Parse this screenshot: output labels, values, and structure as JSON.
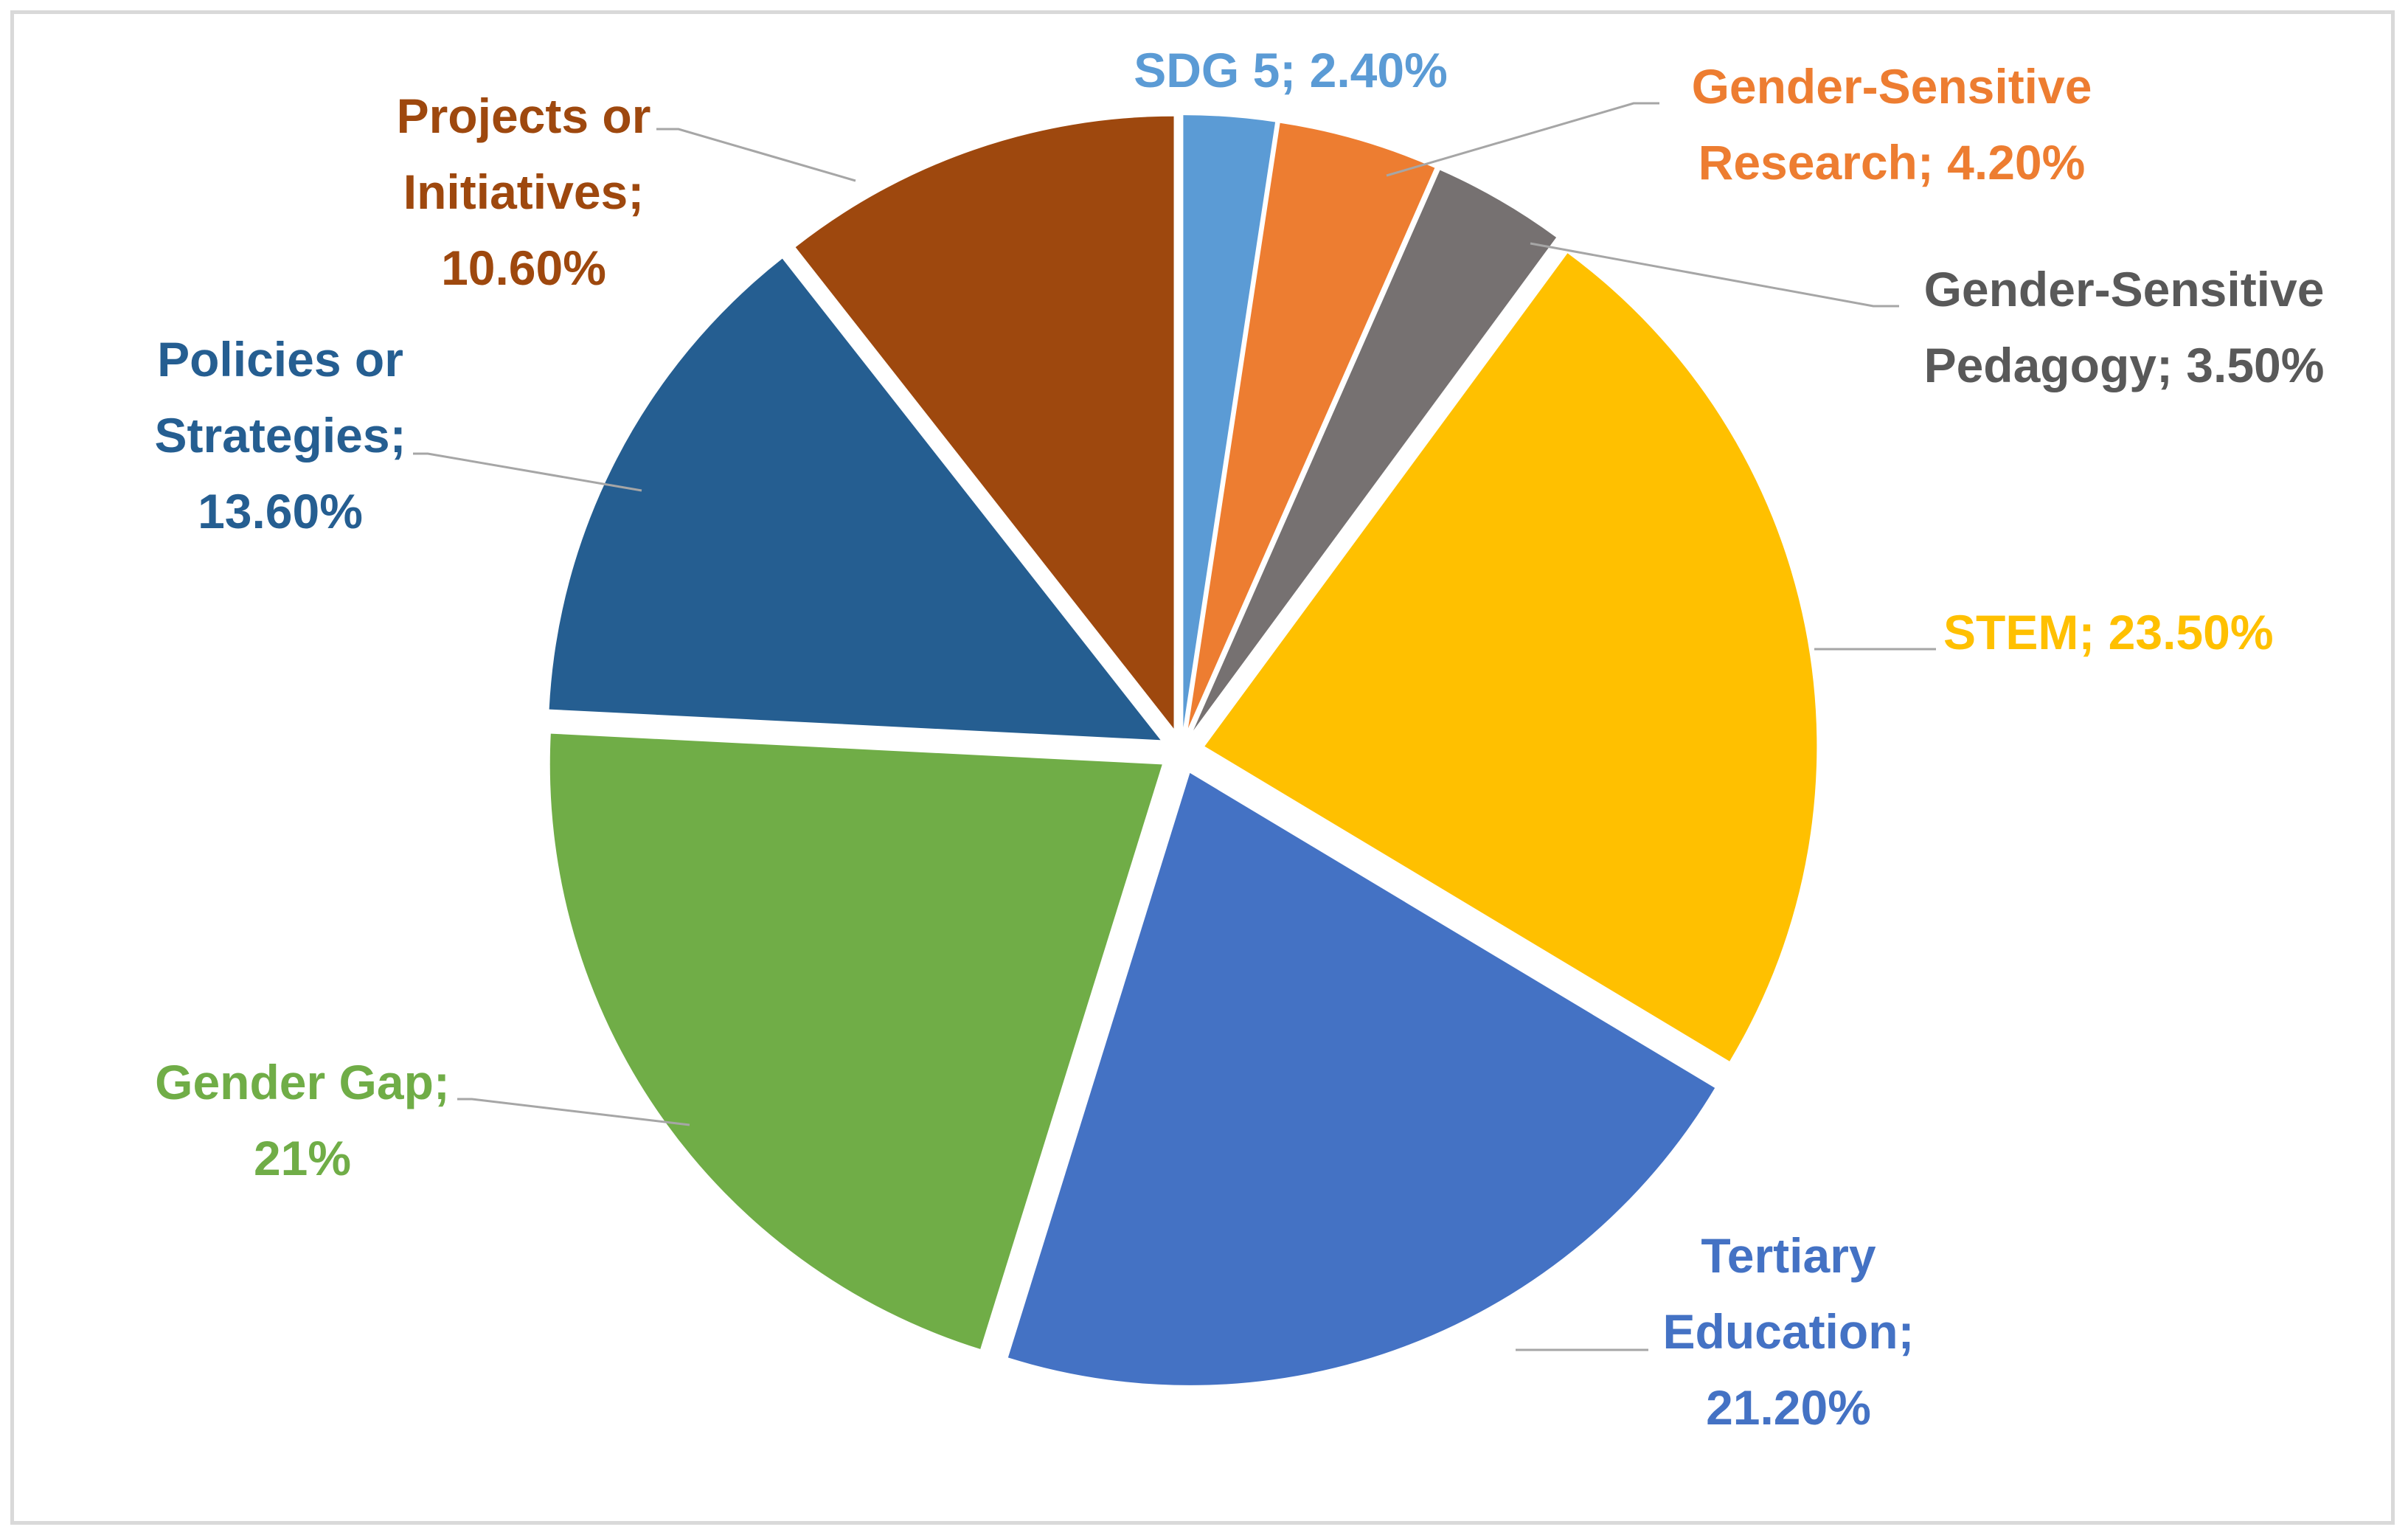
{
  "chart_data": {
    "type": "pie",
    "title": "",
    "legend": "none",
    "start_angle_deg": 0,
    "direction": "clockwise",
    "exploded": true,
    "slices": [
      {
        "name": "SDG 5",
        "value": 2.4,
        "label": "2.40%",
        "label_lines": [
          "SDG 5; 2.40%"
        ],
        "color": "#5b9bd5"
      },
      {
        "name": "Gender-Sensitive Research",
        "value": 4.2,
        "label": "4.20%",
        "label_lines": [
          "Gender-Sensitive",
          "Research; 4.20%"
        ],
        "color": "#ed7d31"
      },
      {
        "name": "Gender-Sensitive Pedagogy",
        "value": 3.5,
        "label": "3.50%",
        "label_lines": [
          "Gender-Sensitive",
          "Pedagogy; 3.50%"
        ],
        "color": "#767171",
        "label_color": "#595959"
      },
      {
        "name": "STEM",
        "value": 23.5,
        "label": "23.50%",
        "label_lines": [
          "STEM; 23.50%"
        ],
        "color": "#ffc000"
      },
      {
        "name": "Tertiary Education",
        "value": 21.2,
        "label": "21.20%",
        "label_lines": [
          "Tertiary",
          "Education;",
          "21.20%"
        ],
        "color": "#4472c4"
      },
      {
        "name": "Gender Gap",
        "value": 21,
        "label": "21%",
        "label_lines": [
          "Gender Gap;",
          "21%"
        ],
        "color": "#70ad47"
      },
      {
        "name": "Policies or Strategies",
        "value": 13.6,
        "label": "13.60%",
        "label_lines": [
          "Policies or",
          "Strategies;",
          "13.60%"
        ],
        "color": "#255e91"
      },
      {
        "name": "Projects or Initiatives",
        "value": 10.6,
        "label": "10.60%",
        "label_lines": [
          "Projects or",
          "Initiatives;",
          "10.60%"
        ],
        "color": "#9e480e"
      }
    ]
  }
}
